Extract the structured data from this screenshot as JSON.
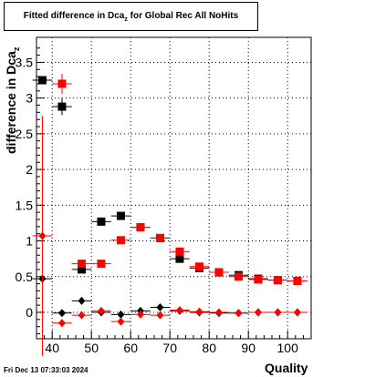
{
  "title_text": "Fitted difference in Dca",
  "title_sub": "z",
  "title_suffix": "  for Global Rec All NoHits",
  "ylabel_text": "difference in Dca",
  "ylabel_sub": "z",
  "xlabel": "Quality",
  "timestamp": "Fri Dec 13 07:33:03 2024",
  "chart_data": {
    "type": "scatter",
    "xlim": [
      36,
      106
    ],
    "ylim": [
      -0.37,
      3.85
    ],
    "x_ticks": [
      40,
      50,
      60,
      70,
      80,
      90,
      100
    ],
    "y_ticks": [
      0,
      0.5,
      1,
      1.5,
      2,
      2.5,
      3,
      3.5
    ],
    "x_ticklabels": [
      "40",
      "50",
      "60",
      "70",
      "80",
      "90",
      "100"
    ],
    "y_ticklabels": [
      "0",
      "0.5",
      "1",
      "1.5",
      "2",
      "2.5",
      "3",
      "3.5"
    ],
    "grid": true,
    "x_halfwidth": 2.5,
    "series": [
      {
        "marker": "square",
        "color": "#000000",
        "points": [
          {
            "x": 37.5,
            "y": 3.25,
            "err": 0.0
          },
          {
            "x": 42.5,
            "y": 2.88,
            "err": 0.12
          },
          {
            "x": 47.5,
            "y": 0.6,
            "err": 0.03
          },
          {
            "x": 52.5,
            "y": 1.27,
            "err": 0.02
          },
          {
            "x": 57.5,
            "y": 1.35,
            "err": 0.02
          },
          {
            "x": 62.5,
            "y": 1.19,
            "err": 0.02
          },
          {
            "x": 67.5,
            "y": 1.04,
            "err": 0.02
          },
          {
            "x": 72.5,
            "y": 0.75,
            "err": 0.02
          },
          {
            "x": 77.5,
            "y": 0.62,
            "err": 0.02
          },
          {
            "x": 82.5,
            "y": 0.56,
            "err": 0.02
          },
          {
            "x": 87.5,
            "y": 0.52,
            "err": 0.02
          },
          {
            "x": 92.5,
            "y": 0.47,
            "err": 0.02
          },
          {
            "x": 97.5,
            "y": 0.45,
            "err": 0.02
          },
          {
            "x": 102.5,
            "y": 0.44,
            "err": 0.02
          }
        ]
      },
      {
        "marker": "square",
        "color": "#ff0000",
        "points": [
          {
            "x": 42.5,
            "y": 3.2,
            "err": 0.14
          },
          {
            "x": 47.5,
            "y": 0.68,
            "err": 0.03
          },
          {
            "x": 52.5,
            "y": 0.68,
            "err": 0.02
          },
          {
            "x": 57.5,
            "y": 1.01,
            "err": 0.02
          },
          {
            "x": 62.5,
            "y": 1.19,
            "err": 0.02
          },
          {
            "x": 67.5,
            "y": 1.04,
            "err": 0.02
          },
          {
            "x": 72.5,
            "y": 0.85,
            "err": 0.02
          },
          {
            "x": 77.5,
            "y": 0.64,
            "err": 0.02
          },
          {
            "x": 82.5,
            "y": 0.56,
            "err": 0.02
          },
          {
            "x": 87.5,
            "y": 0.5,
            "err": 0.02
          },
          {
            "x": 92.5,
            "y": 0.46,
            "err": 0.02
          },
          {
            "x": 97.5,
            "y": 0.45,
            "err": 0.02
          },
          {
            "x": 102.5,
            "y": 0.44,
            "err": 0.02
          }
        ]
      },
      {
        "marker": "diamond",
        "color": "#000000",
        "points": [
          {
            "x": 37.5,
            "y": 0.47,
            "err": 0.0
          },
          {
            "x": 42.5,
            "y": -0.01,
            "err": 0.02
          },
          {
            "x": 47.5,
            "y": 0.16,
            "err": 0.02
          },
          {
            "x": 52.5,
            "y": 0.0,
            "err": 0.02
          },
          {
            "x": 57.5,
            "y": -0.03,
            "err": 0.02
          },
          {
            "x": 62.5,
            "y": 0.02,
            "err": 0.02
          },
          {
            "x": 67.5,
            "y": 0.07,
            "err": 0.02
          },
          {
            "x": 72.5,
            "y": 0.02,
            "err": 0.02
          },
          {
            "x": 77.5,
            "y": 0.0,
            "err": 0.02
          },
          {
            "x": 82.5,
            "y": -0.01,
            "err": 0.02
          },
          {
            "x": 87.5,
            "y": -0.01,
            "err": 0.02
          },
          {
            "x": 92.5,
            "y": 0.0,
            "err": 0.02
          },
          {
            "x": 97.5,
            "y": 0.0,
            "err": 0.02
          },
          {
            "x": 102.5,
            "y": 0.0,
            "err": 0.02
          }
        ]
      },
      {
        "marker": "diamond",
        "color": "#ff0000",
        "points": [
          {
            "x": 37.5,
            "y": 1.07,
            "err": 1.68
          },
          {
            "x": 42.5,
            "y": -0.15,
            "err": 0.05
          },
          {
            "x": 47.5,
            "y": -0.04,
            "err": 0.03
          },
          {
            "x": 52.5,
            "y": 0.02,
            "err": 0.02
          },
          {
            "x": 57.5,
            "y": -0.13,
            "err": 0.02
          },
          {
            "x": 62.5,
            "y": -0.03,
            "err": 0.02
          },
          {
            "x": 67.5,
            "y": -0.04,
            "err": 0.02
          },
          {
            "x": 72.5,
            "y": 0.03,
            "err": 0.02
          },
          {
            "x": 77.5,
            "y": 0.01,
            "err": 0.02
          },
          {
            "x": 82.5,
            "y": 0.0,
            "err": 0.02
          },
          {
            "x": 87.5,
            "y": -0.01,
            "err": 0.02
          },
          {
            "x": 92.5,
            "y": 0.0,
            "err": 0.02
          },
          {
            "x": 97.5,
            "y": 0.0,
            "err": 0.02
          },
          {
            "x": 102.5,
            "y": 0.0,
            "err": 0.02
          }
        ]
      }
    ]
  }
}
